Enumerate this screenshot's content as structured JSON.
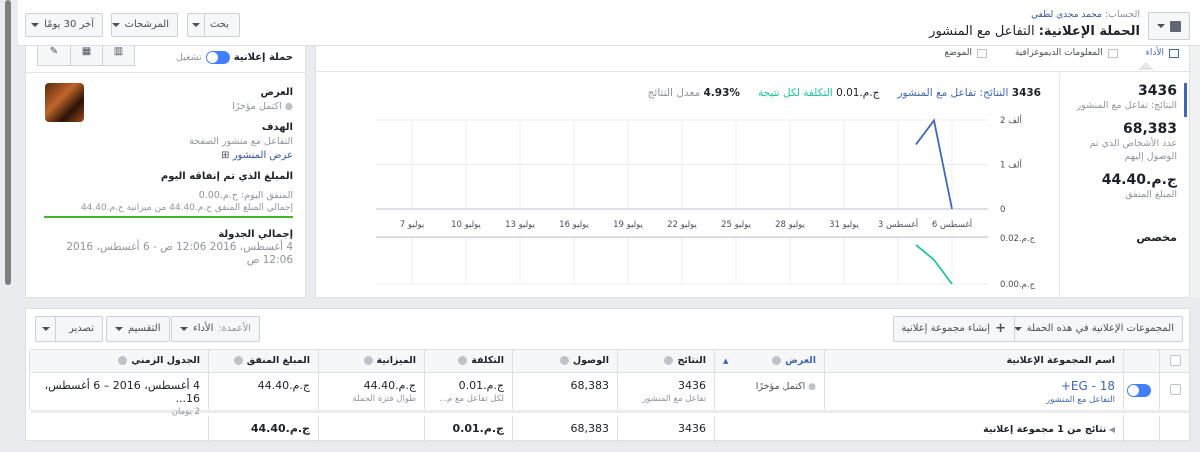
{
  "header": {
    "account_label": "الحساب:",
    "account_name": "محمد مجدي لطفي",
    "title_label": "الحملة الإعلانية:",
    "title": "التفاعل مع المنشور",
    "icon": "campaign-icon",
    "buttons": {
      "search": "بحث",
      "filters": "المرشحات",
      "date_range": "آخر 30 يومًا"
    }
  },
  "chart_panel": {
    "tabs": [
      {
        "label": "الأداء",
        "icon": "bar-chart-icon",
        "active": true
      },
      {
        "label": "المعلومات الديموغرافية",
        "icon": "people-icon"
      },
      {
        "label": "الموضع",
        "icon": "placement-icon"
      }
    ],
    "stats": [
      {
        "value": "3436",
        "label": "النتائج: تفاعل مع المنشور"
      },
      {
        "value": "68,383",
        "label": "عدد الأشخاص الذي تم الوصول إليهم"
      },
      {
        "value": "ج.م.44.40",
        "label": "المبلغ المنفق"
      }
    ],
    "custom_label": "مخصص",
    "summary": {
      "results_value": "3436",
      "results_label": "النتائج: تفاعل مع المنشور",
      "cost_value": "ج.م.0.01",
      "cost_label": "التكلفة لكل نتيجة",
      "rate_value": "4.93%",
      "rate_label": "معدل النتائج"
    },
    "colors": {
      "results": "#4267b2",
      "cost": "#20c5a0"
    }
  },
  "chart_data": [
    {
      "type": "line",
      "series": [
        {
          "name": "النتائج: تفاعل مع المنشور",
          "x": [
            "2016-08-04",
            "2016-08-05",
            "2016-08-06"
          ],
          "values": [
            1450,
            1990,
            0
          ]
        }
      ],
      "ylim": [
        0,
        2000
      ],
      "yticks": [
        {
          "v": 0,
          "label": "0"
        },
        {
          "v": 1000,
          "label": "1 ألف"
        },
        {
          "v": 2000,
          "label": "2 ألف"
        }
      ],
      "xlim": [
        "2016-07-05",
        "2016-08-08"
      ],
      "xticks": [
        {
          "d": "2016-07-07",
          "label": "يوليو 7"
        },
        {
          "d": "2016-07-10",
          "label": "يوليو 10"
        },
        {
          "d": "2016-07-13",
          "label": "يوليو 13"
        },
        {
          "d": "2016-07-16",
          "label": "يوليو 16"
        },
        {
          "d": "2016-07-19",
          "label": "يوليو 19"
        },
        {
          "d": "2016-07-22",
          "label": "يوليو 22"
        },
        {
          "d": "2016-07-25",
          "label": "يوليو 25"
        },
        {
          "d": "2016-07-28",
          "label": "يوليو 28"
        },
        {
          "d": "2016-07-31",
          "label": "يوليو 31"
        },
        {
          "d": "2016-08-03",
          "label": "أغسطس 3"
        },
        {
          "d": "2016-08-06",
          "label": "أغسطس 6"
        }
      ],
      "grid": true
    },
    {
      "type": "line",
      "series": [
        {
          "name": "التكلفة لكل نتيجة",
          "x": [
            "2016-08-04",
            "2016-08-05",
            "2016-08-06"
          ],
          "values": [
            0.017,
            0.0105,
            0.0
          ]
        }
      ],
      "ylim": [
        0,
        0.02
      ],
      "yticks": [
        {
          "v": 0,
          "label": "ج.م.0.00"
        },
        {
          "v": 0.02,
          "label": "ج.م.0.02"
        }
      ],
      "grid": true
    }
  ],
  "side_panel": {
    "title": "حملة إعلانية",
    "toggle_label": "تشغيل",
    "toggle_on": true,
    "delivery_label": "العرض",
    "delivery_value": "اكتمل مؤخرًا",
    "objective_label": "الهدف",
    "objective_value": "التفاعل مع منشور الصفحة",
    "view_post": "عرض المنشور",
    "spent_today_label": "المبلغ الذي تم إنفاقه اليوم",
    "spent_today_value": "المنفق اليوم: ج.م.0.00",
    "total_spent": "إجمالي المبلغ المنفق ج.م.44.40 من ميزانية ج.م.44.40",
    "budget_progress": 1.0,
    "schedule_label": "إجمالي الجدولة",
    "schedule_value": "4 أغسطس، 2016 12:06 ص - 6 أغسطس، 2016 12:06 ص"
  },
  "table": {
    "toolbar": {
      "adsets_dropdown": "المجموعات الإعلانية في هذه الحملة",
      "create": "إنشاء مجموعة إعلانية",
      "columns_label": "الأعمدة:",
      "columns_value": "الأداء",
      "breakdown": "التقسيم",
      "export": "تصدير"
    },
    "headers": [
      "اسم المجموعة الإعلانية",
      "العرض",
      "النتائج",
      "الوصول",
      "التكلفة",
      "الميزانية",
      "المبلغ المنفق",
      "الجدول الزمني"
    ],
    "rows": [
      {
        "name": "EG - 18+",
        "name_sub": "التفاعل مع المنشور",
        "delivery": "اكتمل مؤخرًا",
        "results": "3436",
        "results_sub": "تفاعل مع المنشور",
        "reach": "68,383",
        "cost": "ج.م.0.01",
        "cost_sub": "لكل تفاعل مع م...",
        "budget": "ج.م.44.40",
        "budget_sub": "طوال فترة الحملة",
        "spent": "ج.م.44.40",
        "schedule": "4 أغسطس، 2016 – 6 أغسطس، 16...",
        "schedule_sub": "2 يومان",
        "active": true
      }
    ],
    "summary": {
      "label": "نتائج من 1 مجموعة إعلانية",
      "results": "3436",
      "reach": "68,383",
      "cost": "ج.م.0.01",
      "spent": "ج.م.44.40"
    }
  }
}
